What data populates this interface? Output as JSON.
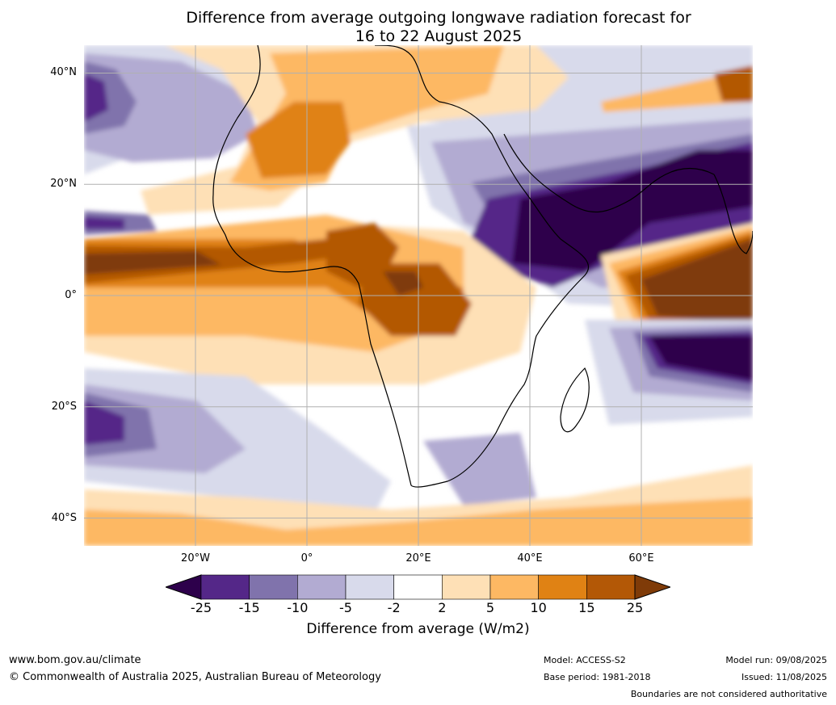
{
  "title_line1": "Difference from average outgoing longwave radiation forecast for",
  "title_line2": "16 to 22 August 2025",
  "map": {
    "lat_labels": [
      "40°N",
      "20°N",
      "0°",
      "20°S",
      "40°S"
    ],
    "lon_labels": [
      "20°W",
      "0°",
      "20°E",
      "40°E",
      "60°E"
    ],
    "region": "Africa and surrounding oceans",
    "lon_range": [
      -40,
      80
    ],
    "lat_range": [
      -45,
      45
    ],
    "grid": true
  },
  "colorbar": {
    "ticks": [
      "-25",
      "-15",
      "-10",
      "-5",
      "-2",
      "2",
      "5",
      "10",
      "15",
      "25"
    ],
    "colors": [
      "#2d004b",
      "#542788",
      "#8073ac",
      "#b2abd2",
      "#d8daeb",
      "#ffffff",
      "#fee0b6",
      "#fdb863",
      "#e08214",
      "#b35806",
      "#7f3b08"
    ],
    "label": "Difference from average (W/m2)",
    "extend": "both"
  },
  "footer": {
    "website": "www.bom.gov.au/climate",
    "copyright": "© Commonwealth of Australia 2025, Australian Bureau of Meteorology",
    "model": "Model: ACCESS-S2",
    "base_period": "Base period: 1981-2018",
    "model_run": "Model run: 09/08/2025",
    "issued": "Issued: 11/08/2025",
    "disclaimer": "Boundaries are not considered authoritative"
  }
}
